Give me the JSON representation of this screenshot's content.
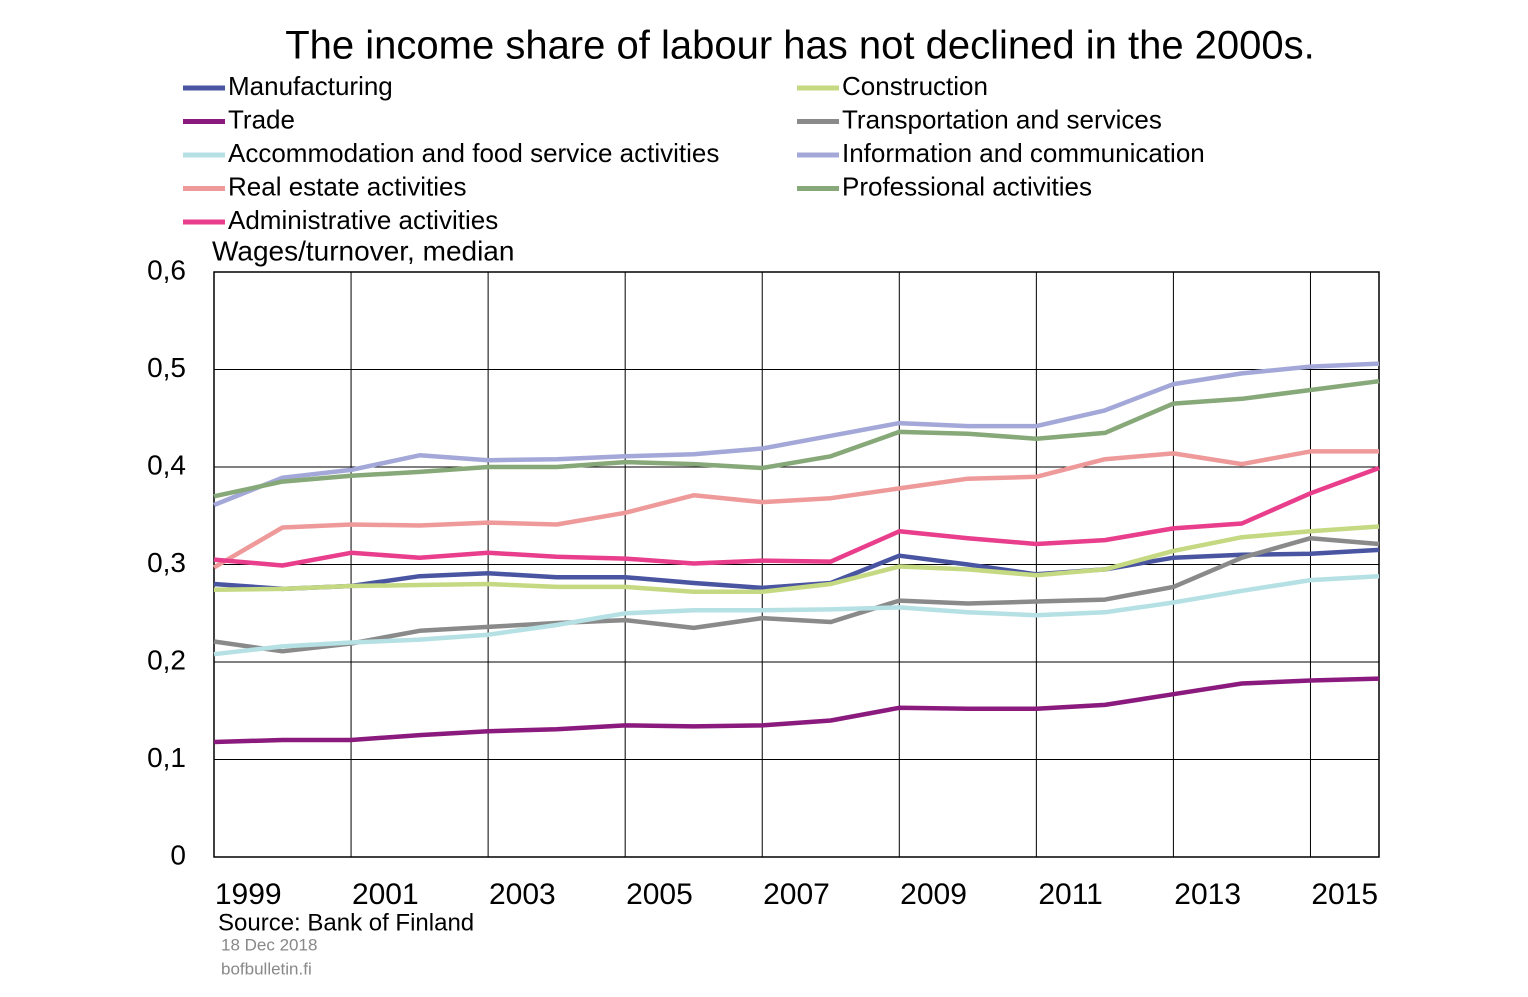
{
  "chart_data": {
    "type": "line",
    "title": "The income share of labour has not declined in the 2000s.",
    "y_axis_label": "Wages/turnover,  median",
    "source": "Source:  Bank of Finland",
    "date": "18 Dec 2018",
    "site": "bofbulletin.fi",
    "categories": [
      "1999",
      null,
      "2001",
      null,
      "2003",
      null,
      "2005",
      null,
      "2007",
      null,
      "2009",
      null,
      "2011",
      null,
      "2013",
      null,
      "2015",
      null
    ],
    "ylim": [
      0,
      0.6
    ],
    "yticks": [
      0,
      {
        "value": 0.1,
        "label": "0,1"
      },
      {
        "value": 0.2,
        "label": "0,2"
      },
      {
        "value": 0.3,
        "label": "0,3"
      },
      {
        "value": 0.4,
        "label": "0,4"
      },
      {
        "value": 0.5,
        "label": "0,5"
      },
      {
        "value": 0.6,
        "label": "0,6"
      }
    ],
    "grid": true,
    "series": [
      {
        "name": "Manufacturing",
        "color": "#4a55a2",
        "values": [
          0.28,
          0.275,
          0.278,
          0.288,
          0.291,
          0.287,
          0.287,
          0.281,
          0.276,
          0.281,
          0.309,
          0.3,
          0.29,
          0.295,
          0.307,
          0.31,
          0.311,
          0.315
        ]
      },
      {
        "name": "Construction",
        "color": "#c5d882",
        "values": [
          0.274,
          0.275,
          0.278,
          0.279,
          0.28,
          0.277,
          0.277,
          0.272,
          0.272,
          0.28,
          0.298,
          0.295,
          0.289,
          0.295,
          0.314,
          0.328,
          0.334,
          0.339
        ]
      },
      {
        "name": "Trade",
        "color": "#8b1a7e",
        "values": [
          0.118,
          0.12,
          0.12,
          0.125,
          0.129,
          0.131,
          0.135,
          0.134,
          0.135,
          0.14,
          0.153,
          0.152,
          0.152,
          0.156,
          0.167,
          0.178,
          0.181,
          0.183
        ]
      },
      {
        "name": "Transportation and services",
        "color": "#8a8a8a",
        "values": [
          0.221,
          0.211,
          0.219,
          0.232,
          0.236,
          0.24,
          0.243,
          0.235,
          0.245,
          0.241,
          0.263,
          0.26,
          0.262,
          0.264,
          0.277,
          0.307,
          0.327,
          0.321
        ]
      },
      {
        "name": "Accommodation and food service activities",
        "color": "#b5e0e4",
        "values": [
          0.208,
          0.216,
          0.22,
          0.223,
          0.228,
          0.238,
          0.25,
          0.253,
          0.253,
          0.254,
          0.256,
          0.251,
          0.248,
          0.251,
          0.261,
          0.273,
          0.284,
          0.288
        ]
      },
      {
        "name": "Information and communication",
        "color": "#a3a8d8",
        "values": [
          0.361,
          0.389,
          0.397,
          0.412,
          0.407,
          0.408,
          0.411,
          0.413,
          0.419,
          0.432,
          0.445,
          0.442,
          0.442,
          0.458,
          0.485,
          0.496,
          0.503,
          0.506
        ]
      },
      {
        "name": "Real estate activities",
        "color": "#ef9a9a",
        "values": [
          0.297,
          0.338,
          0.341,
          0.34,
          0.343,
          0.341,
          0.353,
          0.371,
          0.364,
          0.368,
          0.378,
          0.388,
          0.39,
          0.408,
          0.414,
          0.403,
          0.416,
          0.416
        ]
      },
      {
        "name": "Professional activities",
        "color": "#87a878",
        "values": [
          0.37,
          0.385,
          0.391,
          0.395,
          0.4,
          0.4,
          0.405,
          0.403,
          0.399,
          0.411,
          0.436,
          0.434,
          0.429,
          0.435,
          0.465,
          0.47,
          0.479,
          0.488
        ]
      },
      {
        "name": "Administrative activities",
        "color": "#e83e8c",
        "values": [
          0.305,
          0.299,
          0.312,
          0.307,
          0.312,
          0.308,
          0.306,
          0.301,
          0.304,
          0.303,
          0.334,
          0.327,
          0.321,
          0.325,
          0.337,
          0.342,
          0.373,
          0.399
        ]
      }
    ]
  }
}
